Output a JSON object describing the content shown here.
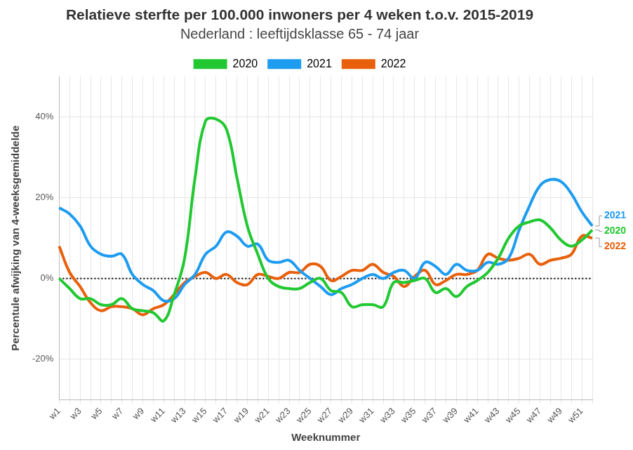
{
  "chart_data": {
    "type": "line",
    "title": "Relatieve sterfte per 100.000 inwoners per 4 weken t.o.v. 2015-2019",
    "subtitle": "Nederland : leeftijdsklasse 65 - 74 jaar",
    "x_label": "Weeknummer",
    "y_label": "Percentule afwijking van 4-weeksgemiddelde",
    "categories": [
      "w1",
      null,
      "w3",
      null,
      "w5",
      null,
      "w7",
      null,
      "w9",
      null,
      "w11",
      null,
      "w13",
      null,
      "w15",
      null,
      "w17",
      null,
      "w19",
      null,
      "w21",
      null,
      "w23",
      null,
      "w25",
      null,
      "w27",
      null,
      "w29",
      null,
      "w31",
      null,
      "w33",
      null,
      "w35",
      null,
      "w37",
      null,
      "w39",
      null,
      "w41",
      null,
      "w43",
      null,
      "w45",
      null,
      "w47",
      null,
      "w49",
      null,
      "w51",
      null
    ],
    "series": [
      {
        "name": "2020",
        "color": "#22c832",
        "values": [
          0,
          -2.5,
          -5,
          -5,
          -6.5,
          -6.5,
          -5,
          -7.5,
          -8,
          -8.5,
          -10.5,
          -4,
          5,
          25,
          39,
          39.5,
          37,
          25,
          13,
          6,
          0,
          -2,
          -2.5,
          -2.5,
          -1,
          0,
          -3,
          -3.5,
          -7,
          -6.5,
          -6.5,
          -7,
          -1,
          -1,
          -0.5,
          0,
          -3.5,
          -2.5,
          -4.5,
          -2,
          -0.5,
          1.5,
          5,
          10,
          13,
          14,
          14.5,
          12.5,
          9.5,
          8,
          9.5,
          12
        ]
      },
      {
        "name": "2021",
        "color": "#1e9cf0",
        "values": [
          17.5,
          16,
          13,
          8,
          6,
          5.5,
          6,
          1,
          -1.5,
          -3,
          -5.5,
          -5,
          -1.5,
          1,
          6,
          8,
          11.5,
          10.5,
          8,
          8.5,
          4.5,
          4,
          4.5,
          2,
          0,
          -2,
          -4,
          -2.5,
          -1.5,
          0,
          1,
          0,
          1.5,
          2,
          0,
          4,
          3,
          1,
          3.5,
          2,
          2,
          4,
          3.5,
          5,
          12,
          18,
          23,
          24.5,
          24,
          21,
          16.5,
          13
        ]
      },
      {
        "name": "2022",
        "color": "#e8600c",
        "values": [
          8,
          1.5,
          -2,
          -6,
          -8,
          -7,
          -7,
          -7.5,
          -9,
          -7.5,
          -6.5,
          -4,
          -1,
          0.5,
          1.5,
          0,
          1,
          -1,
          -1.5,
          1,
          0.5,
          0,
          1.5,
          1.5,
          3.5,
          3,
          -0.5,
          0.5,
          2,
          2,
          3.5,
          1.5,
          0.5,
          -2,
          0.5,
          2,
          -1.5,
          -0.5,
          1,
          1,
          2,
          6,
          5,
          4.5,
          5,
          6,
          3.5,
          4.5,
          5,
          6,
          10.5,
          10
        ]
      }
    ],
    "ylim": [
      -30,
      50
    ],
    "yticks": [
      {
        "value": -20,
        "label": "-20%"
      },
      {
        "value": 0,
        "label": "0%"
      },
      {
        "value": 20,
        "label": "20%"
      },
      {
        "value": 40,
        "label": "40%"
      }
    ],
    "grid": true,
    "legend": "top"
  }
}
